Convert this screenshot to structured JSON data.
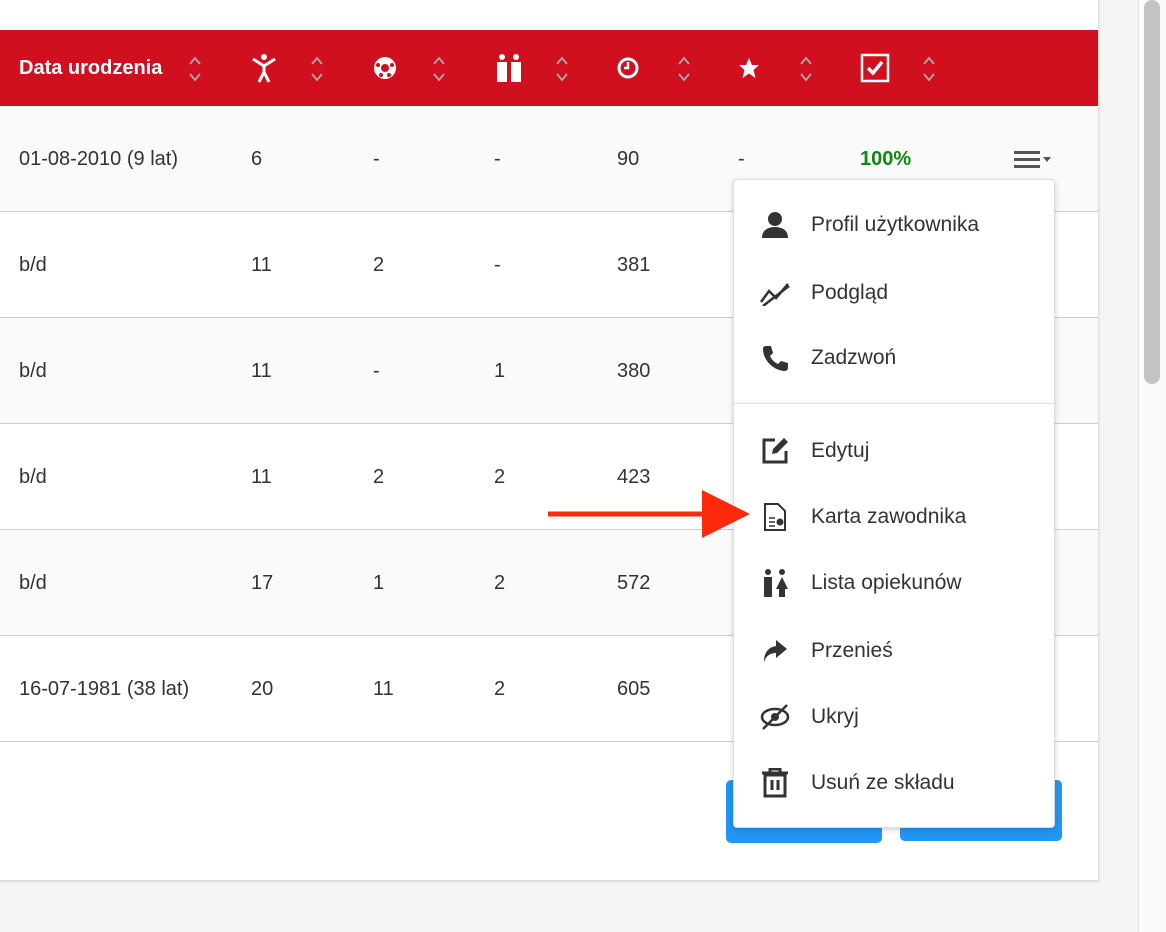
{
  "table": {
    "header": {
      "date_label": "Data urodzenia",
      "icons": [
        "person-icon",
        "soccer-ball-icon",
        "guardians-icon",
        "clock-icon",
        "star-icon",
        "checkbox-icon"
      ]
    },
    "rows": [
      [
        "01-08-2010 (9 lat)",
        "6",
        "-",
        "-",
        "90",
        "-",
        "100%"
      ],
      [
        "b/d",
        "11",
        "2",
        "-",
        "381",
        "",
        ""
      ],
      [
        "b/d",
        "11",
        "-",
        "1",
        "380",
        "",
        ""
      ],
      [
        "b/d",
        "11",
        "2",
        "2",
        "423",
        "",
        ""
      ],
      [
        "b/d",
        "17",
        "1",
        "2",
        "572",
        "",
        ""
      ],
      [
        "16-07-1981 (38 lat)",
        "20",
        "11",
        "2",
        "605",
        "",
        ""
      ]
    ]
  },
  "menu": {
    "items": [
      {
        "label": "Profil użytkownika",
        "icon": "user-icon"
      },
      {
        "label": "Podgląd",
        "icon": "chart-line-icon"
      },
      {
        "label": "Zadzwoń",
        "icon": "phone-icon"
      },
      {
        "label": "Edytuj",
        "icon": "edit-icon"
      },
      {
        "label": "Karta zawodnika",
        "icon": "file-chart-icon"
      },
      {
        "label": "Lista opiekunów",
        "icon": "guardians-icon"
      },
      {
        "label": "Przenieś",
        "icon": "share-arrow-icon"
      },
      {
        "label": "Ukryj",
        "icon": "eye-slash-icon"
      },
      {
        "label": "Usuń ze składu",
        "icon": "trash-icon"
      }
    ]
  },
  "colors": {
    "header": "#d0101f",
    "accent": "#2196f3",
    "success": "#118811",
    "arrow": "#ff2a0e"
  }
}
